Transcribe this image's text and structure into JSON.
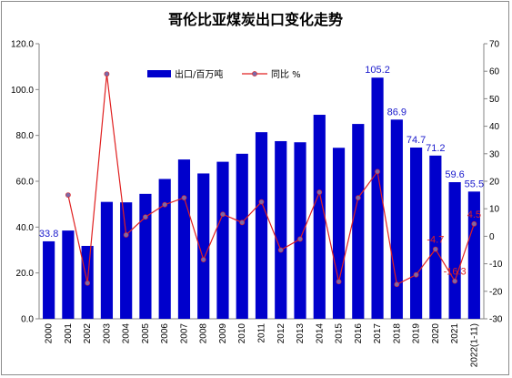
{
  "chart_data": {
    "type": "bar+line",
    "title": "哥伦比亚煤炭出口变化走势",
    "categories": [
      "2000",
      "2001",
      "2002",
      "2003",
      "2004",
      "2005",
      "2006",
      "2007",
      "2008",
      "2009",
      "2010",
      "2011",
      "2012",
      "2013",
      "2014",
      "2015",
      "2016",
      "2017",
      "2018",
      "2019",
      "2020",
      "2021",
      "2022(1-11)"
    ],
    "series": [
      {
        "name": "出口/百万吨",
        "type": "bar",
        "axis": "left",
        "color": "#0000cc",
        "values": [
          33.8,
          38.5,
          31.8,
          51.0,
          50.8,
          54.5,
          61.0,
          69.5,
          63.4,
          68.5,
          72.0,
          81.4,
          77.5,
          77.0,
          89.0,
          74.6,
          85.0,
          105.2,
          86.9,
          74.7,
          71.2,
          59.6,
          55.5
        ]
      },
      {
        "name": "同比 %",
        "type": "line",
        "axis": "right",
        "color": "#e02020",
        "marker_color": "#7a6aa8",
        "values": [
          null,
          15.0,
          -17.0,
          59.0,
          0.5,
          7.0,
          11.5,
          14.0,
          -8.5,
          8.0,
          5.0,
          12.5,
          -5.0,
          -1.0,
          16.0,
          -16.5,
          14.0,
          23.5,
          -17.5,
          -14.0,
          -4.7,
          -16.3,
          4.5
        ]
      }
    ],
    "bar_labels": [
      {
        "index": 0,
        "text": "33.8"
      },
      {
        "index": 17,
        "text": "105.2"
      },
      {
        "index": 18,
        "text": "86.9"
      },
      {
        "index": 19,
        "text": "74.7"
      },
      {
        "index": 20,
        "text": "71.2"
      },
      {
        "index": 21,
        "text": "59.6"
      },
      {
        "index": 22,
        "text": "55.5"
      }
    ],
    "line_labels": [
      {
        "index": 20,
        "text": "-4.7"
      },
      {
        "index": 21,
        "text": "-16.3"
      },
      {
        "index": 22,
        "text": "4.5"
      }
    ],
    "y_left": {
      "min": 0,
      "max": 120,
      "step": 20,
      "ticks": [
        "0.0",
        "20.0",
        "40.0",
        "60.0",
        "80.0",
        "100.0",
        "120.0"
      ]
    },
    "y_right": {
      "min": -30,
      "max": 70,
      "step": 10,
      "ticks": [
        "-30",
        "-20",
        "-10",
        "0",
        "10",
        "20",
        "30",
        "40",
        "50",
        "60",
        "70"
      ]
    },
    "grid": false,
    "legend_position": "top"
  }
}
